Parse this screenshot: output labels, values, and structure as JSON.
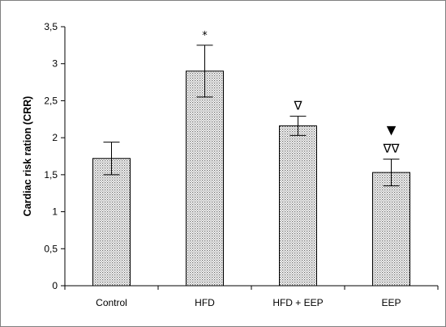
{
  "chart_data": {
    "type": "bar",
    "categories": [
      "Control",
      "HFD",
      "HFD + EEP",
      "EEP"
    ],
    "values": [
      1.72,
      2.9,
      2.16,
      1.53
    ],
    "errors": [
      0.22,
      0.35,
      0.13,
      0.18
    ],
    "annotations": [
      "",
      "*",
      "∇",
      "▼\n∇∇"
    ],
    "xlabel": "",
    "ylabel": "Cardiac risk ration (CRR)",
    "ylim": [
      0,
      3.5
    ],
    "yticks": [
      "0",
      "0,5",
      "1",
      "1,5",
      "2",
      "2,5",
      "3",
      "3,5"
    ],
    "grid": false,
    "bar_fill": "dotted-gray",
    "bar_stroke": "#000000"
  }
}
